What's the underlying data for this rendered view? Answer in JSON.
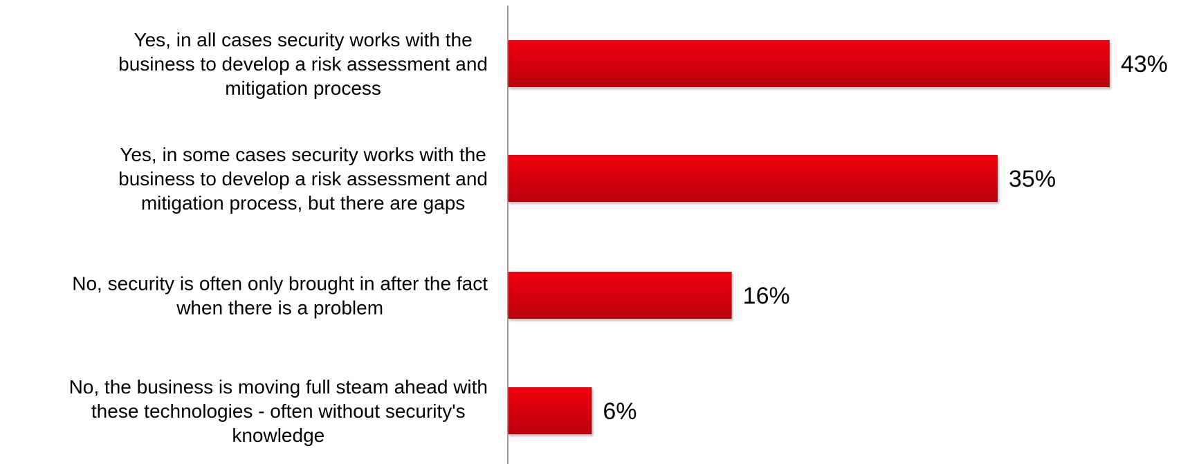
{
  "chart_data": {
    "type": "bar",
    "orientation": "horizontal",
    "categories": [
      "Yes, in all cases security works with the business to develop a risk assessment and mitigation process",
      "Yes, in some cases security works with the business to develop a risk assessment and mitigation process, but there are gaps",
      "No, security is often only brought in after the fact when there is a problem",
      "No, the business is moving full steam ahead with these technologies - often without security's knowledge"
    ],
    "category_lines": [
      [
        "Yes, in all cases security works with the",
        "business to develop a risk assessment and",
        "mitigation process"
      ],
      [
        "Yes, in some cases security works with the",
        "business to develop a risk assessment and",
        "mitigation process, but there are gaps"
      ],
      [
        "No, security is often only brought in after the fact",
        "when there is a problem"
      ],
      [
        "No, the business is moving full steam ahead with",
        "these technologies - often without security's",
        "knowledge"
      ]
    ],
    "values": [
      43,
      35,
      16,
      6
    ],
    "data_labels": [
      "43%",
      "35%",
      "16%",
      "6%"
    ],
    "unit": "%",
    "xlim": [
      0,
      48
    ],
    "grid": false,
    "legend": "none",
    "colors": {
      "bar_top": "#f2000d",
      "bar_bottom": "#b8000a",
      "axis": "#7f7f7f"
    }
  }
}
